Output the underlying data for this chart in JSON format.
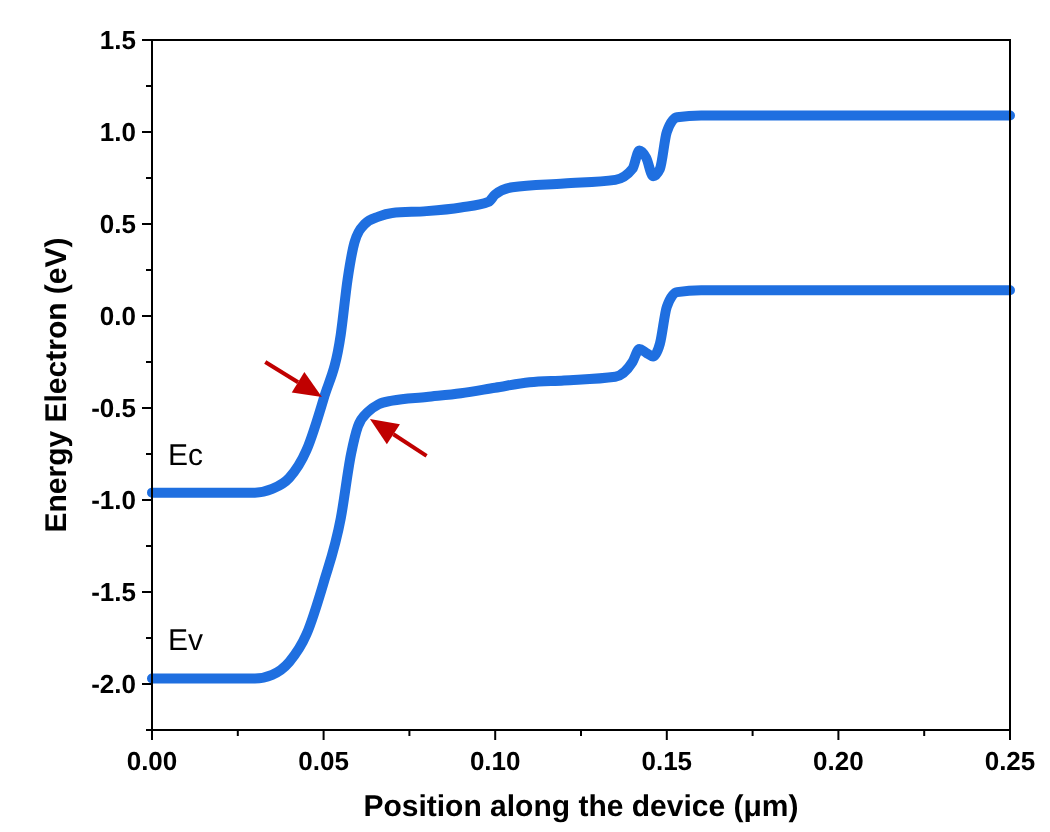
{
  "chart_data": {
    "type": "line",
    "xlabel": "Position along the device (μm)",
    "ylabel": "Energy Electron (eV)",
    "xlim": [
      0,
      0.25
    ],
    "ylim": [
      -2.25,
      1.5
    ],
    "xticks": [
      {
        "value": 0,
        "label": "0.00"
      },
      {
        "value": 0.025,
        "label": null
      },
      {
        "value": 0.05,
        "label": "0.05"
      },
      {
        "value": 0.075,
        "label": null
      },
      {
        "value": 0.1,
        "label": "0.10"
      },
      {
        "value": 0.125,
        "label": null
      },
      {
        "value": 0.15,
        "label": "0.15"
      },
      {
        "value": 0.175,
        "label": null
      },
      {
        "value": 0.2,
        "label": "0.20"
      },
      {
        "value": 0.225,
        "label": null
      },
      {
        "value": 0.25,
        "label": "0.25"
      }
    ],
    "yticks": [
      {
        "value": -2.25,
        "label": null
      },
      {
        "value": -2,
        "label": "-2.0"
      },
      {
        "value": -1.75,
        "label": null
      },
      {
        "value": -1.5,
        "label": "-1.5"
      },
      {
        "value": -1.25,
        "label": null
      },
      {
        "value": -1,
        "label": "-1.0"
      },
      {
        "value": -0.75,
        "label": null
      },
      {
        "value": -0.5,
        "label": "-0.5"
      },
      {
        "value": -0.25,
        "label": null
      },
      {
        "value": 0,
        "label": "0.0"
      },
      {
        "value": 0.25,
        "label": null
      },
      {
        "value": 0.5,
        "label": "0.5"
      },
      {
        "value": 0.75,
        "label": null
      },
      {
        "value": 1,
        "label": "1.0"
      },
      {
        "value": 1.25,
        "label": null
      },
      {
        "value": 1.5,
        "label": "1.5"
      }
    ],
    "grid": false,
    "line_style": "solid",
    "series": [
      {
        "name": "Ec",
        "color": "#1f6fe0",
        "x": [
          0,
          0.02,
          0.03,
          0.035,
          0.04,
          0.045,
          0.05,
          0.055,
          0.057,
          0.059,
          0.062,
          0.066,
          0.07,
          0.08,
          0.09,
          0.098,
          0.1,
          0.105,
          0.12,
          0.135,
          0.14,
          0.142,
          0.144,
          0.146,
          0.148,
          0.15,
          0.153,
          0.16,
          0.2,
          0.25
        ],
        "values": [
          -0.96,
          -0.96,
          -0.96,
          -0.94,
          -0.88,
          -0.73,
          -0.45,
          -0.1,
          0.2,
          0.4,
          0.5,
          0.54,
          0.56,
          0.57,
          0.59,
          0.62,
          0.66,
          0.7,
          0.72,
          0.74,
          0.8,
          0.9,
          0.86,
          0.76,
          0.8,
          1.0,
          1.08,
          1.09,
          1.09,
          1.09
        ]
      },
      {
        "name": "Ev",
        "color": "#1f6fe0",
        "x": [
          0,
          0.02,
          0.03,
          0.035,
          0.04,
          0.045,
          0.05,
          0.055,
          0.058,
          0.06,
          0.063,
          0.066,
          0.07,
          0.08,
          0.09,
          0.1,
          0.11,
          0.12,
          0.135,
          0.14,
          0.142,
          0.144,
          0.146,
          0.148,
          0.15,
          0.153,
          0.16,
          0.2,
          0.25
        ],
        "values": [
          -1.97,
          -1.97,
          -1.97,
          -1.95,
          -1.88,
          -1.73,
          -1.45,
          -1.1,
          -0.75,
          -0.6,
          -0.52,
          -0.48,
          -0.46,
          -0.44,
          -0.42,
          -0.39,
          -0.36,
          -0.35,
          -0.33,
          -0.25,
          -0.18,
          -0.2,
          -0.22,
          -0.15,
          0.05,
          0.13,
          0.14,
          0.14,
          0.14
        ]
      }
    ]
  }
}
